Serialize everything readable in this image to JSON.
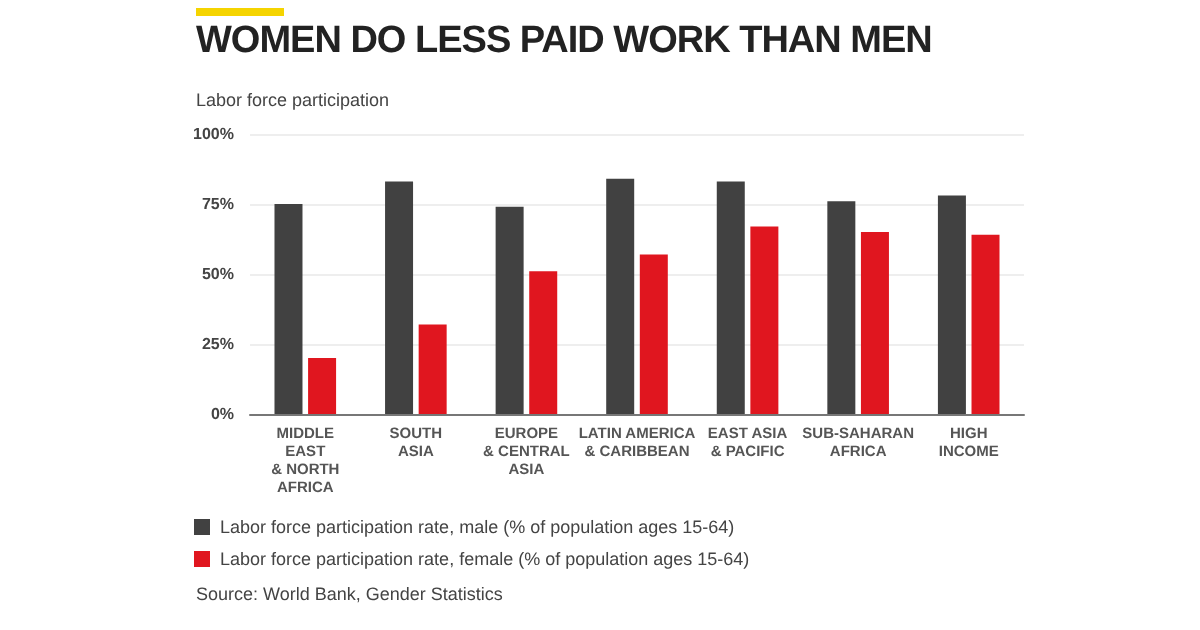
{
  "chart_data": {
    "type": "bar",
    "title": "WOMEN DO LESS PAID WORK THAN MEN",
    "ylabel": "Labor force participation",
    "categories": [
      "MIDDLE\nEAST\n& NORTH\nAFRICA",
      "SOUTH\nASIA",
      "EUROPE\n& CENTRAL\nASIA",
      "LATIN AMERICA\n& CARIBBEAN",
      "EAST ASIA\n& PACIFIC",
      "SUB-SAHARAN\nAFRICA",
      "HIGH\nINCOME"
    ],
    "series": [
      {
        "name": "Labor force participation rate, male (% of population ages 15-64)",
        "color": "#414141",
        "values": [
          75,
          83,
          74,
          84,
          83,
          76,
          78
        ]
      },
      {
        "name": "Labor force participation rate, female (% of population ages 15-64)",
        "color": "#e0161f",
        "values": [
          20,
          32,
          51,
          57,
          67,
          65,
          64
        ]
      }
    ],
    "ylim": [
      0,
      100
    ],
    "yticks": [
      {
        "value": 0,
        "label": "0%"
      },
      {
        "value": 25,
        "label": "25%"
      },
      {
        "value": 50,
        "label": "50%"
      },
      {
        "value": 75,
        "label": "75%"
      },
      {
        "value": 100,
        "label": "100%"
      }
    ],
    "grid": "y",
    "legend": "bottom left",
    "annotations": [
      "Source: World Bank, Gender Statistics"
    ]
  }
}
